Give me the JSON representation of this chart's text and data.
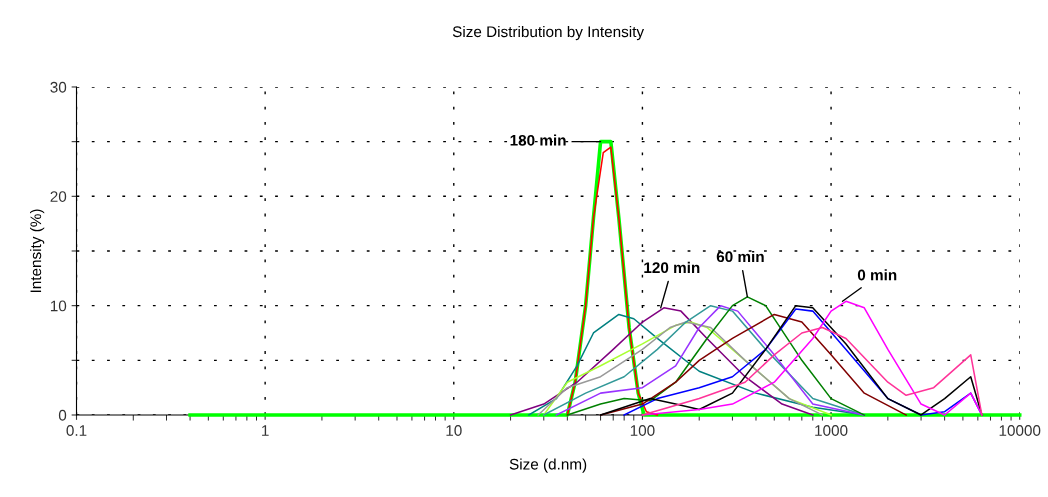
{
  "chart_data": {
    "type": "line",
    "title": "Size Distribution by Intensity",
    "xlabel": "Size (d.nm)",
    "ylabel": "Intensity (%)",
    "log": "x",
    "grid": true,
    "legend": false,
    "marker": "none",
    "line_style": "solid",
    "xlim": [
      0.1,
      10000
    ],
    "xticks": [
      0.1,
      1,
      10,
      100,
      1000,
      10000
    ],
    "ylim": [
      0,
      30
    ],
    "yticks": [
      0,
      {
        "value": 5,
        "label": null
      },
      10,
      {
        "value": 15,
        "label": null
      },
      20,
      {
        "value": 25,
        "label": null
      },
      30
    ],
    "annotations": [
      {
        "text": "180 min",
        "x": 60,
        "y": 25
      },
      {
        "text": "120 min",
        "x": 125,
        "y": 9.8
      },
      {
        "text": "60 min",
        "x": 360,
        "y": 10.8
      },
      {
        "text": "0 min",
        "x": 1150,
        "y": 10.4
      }
    ],
    "series": [
      {
        "color": "#00ff00",
        "x": [
          0.4,
          40,
          44,
          50,
          55,
          60,
          68,
          75,
          85,
          95,
          102,
          10000
        ],
        "values": [
          0,
          0,
          3,
          10,
          18,
          25,
          25,
          18,
          8,
          2,
          0,
          0
        ]
      },
      {
        "color": "#ff0000",
        "x": [
          40,
          44,
          50,
          55,
          62,
          68,
          75,
          85,
          95,
          105,
          120
        ],
        "values": [
          0,
          3,
          10,
          18,
          24,
          24.5,
          18,
          8,
          2,
          0.3,
          0
        ]
      },
      {
        "color": "#008080",
        "x": [
          25,
          35,
          45,
          55,
          75,
          90,
          120,
          200,
          400,
          800,
          1500
        ],
        "values": [
          0,
          1.5,
          4.5,
          7.5,
          9.2,
          8.8,
          7,
          4,
          2,
          0.7,
          0
        ]
      },
      {
        "color": "#800080",
        "x": [
          20,
          30,
          45,
          70,
          100,
          130,
          160,
          220,
          350,
          550,
          800
        ],
        "values": [
          0,
          1,
          3,
          6,
          8.5,
          9.8,
          9.5,
          7,
          3.5,
          1,
          0
        ]
      },
      {
        "color": "#aaff33",
        "x": [
          30,
          40,
          60,
          100,
          150,
          180,
          220,
          350,
          600,
          1000
        ],
        "values": [
          0,
          3,
          4.5,
          6.5,
          8.2,
          8.5,
          8,
          5,
          1.5,
          0
        ]
      },
      {
        "color": "#999999",
        "x": [
          28,
          40,
          60,
          100,
          140,
          170,
          230,
          350,
          600,
          900
        ],
        "values": [
          0,
          2.5,
          3.5,
          6,
          8,
          8.5,
          8,
          5,
          1.5,
          0
        ]
      },
      {
        "color": "#339999",
        "x": [
          30,
          50,
          80,
          120,
          170,
          230,
          300,
          450,
          800,
          1500
        ],
        "values": [
          0,
          2,
          3.5,
          6,
          8.5,
          10,
          9.5,
          6,
          1.5,
          0
        ]
      },
      {
        "color": "#9933ff",
        "x": [
          35,
          60,
          100,
          150,
          200,
          260,
          320,
          500,
          800,
          1500
        ],
        "values": [
          0,
          2,
          2.5,
          4.5,
          8,
          10,
          9.5,
          5.5,
          1,
          0
        ]
      },
      {
        "color": "#008000",
        "x": [
          40,
          60,
          80,
          110,
          150,
          220,
          300,
          360,
          450,
          700,
          1000,
          1500
        ],
        "values": [
          0,
          1,
          1.5,
          1.3,
          3,
          7,
          10,
          10.8,
          10,
          5,
          1.5,
          0
        ]
      },
      {
        "color": "#800000",
        "x": [
          60,
          100,
          150,
          200,
          300,
          500,
          700,
          1000,
          1500,
          2500
        ],
        "values": [
          0,
          1,
          3,
          5,
          7,
          9.2,
          8.5,
          5.5,
          2,
          0
        ]
      },
      {
        "color": "#0000ff",
        "x": [
          80,
          120,
          200,
          300,
          450,
          650,
          800,
          1200,
          2000,
          3000,
          4000,
          5500,
          6300
        ],
        "values": [
          0,
          1.5,
          2.5,
          3.5,
          6,
          9.7,
          9.5,
          6,
          1.5,
          0,
          0.3,
          2,
          0
        ]
      },
      {
        "color": "#000000",
        "x": [
          60,
          110,
          150,
          200,
          300,
          450,
          650,
          800,
          1200,
          2000,
          3000,
          4000,
          5500,
          6300
        ],
        "values": [
          0,
          1.5,
          1,
          0.5,
          2,
          6,
          10,
          9.8,
          6.5,
          1.5,
          0,
          1.5,
          3.5,
          0
        ]
      },
      {
        "color": "#ff00ff",
        "x": [
          100,
          200,
          300,
          500,
          800,
          1000,
          1200,
          1500,
          2000,
          3000,
          4000,
          5500,
          6300
        ],
        "values": [
          0,
          0.5,
          1,
          3,
          7,
          9.5,
          10.4,
          9.8,
          6,
          1,
          0,
          2,
          0
        ]
      },
      {
        "color": "#ff3399",
        "x": [
          100,
          200,
          350,
          500,
          700,
          900,
          1200,
          2000,
          2500,
          3500,
          5500,
          6300
        ],
        "values": [
          0,
          1.5,
          3,
          5.5,
          7.5,
          8,
          7,
          3,
          1.8,
          2.5,
          5.5,
          0
        ]
      }
    ]
  }
}
